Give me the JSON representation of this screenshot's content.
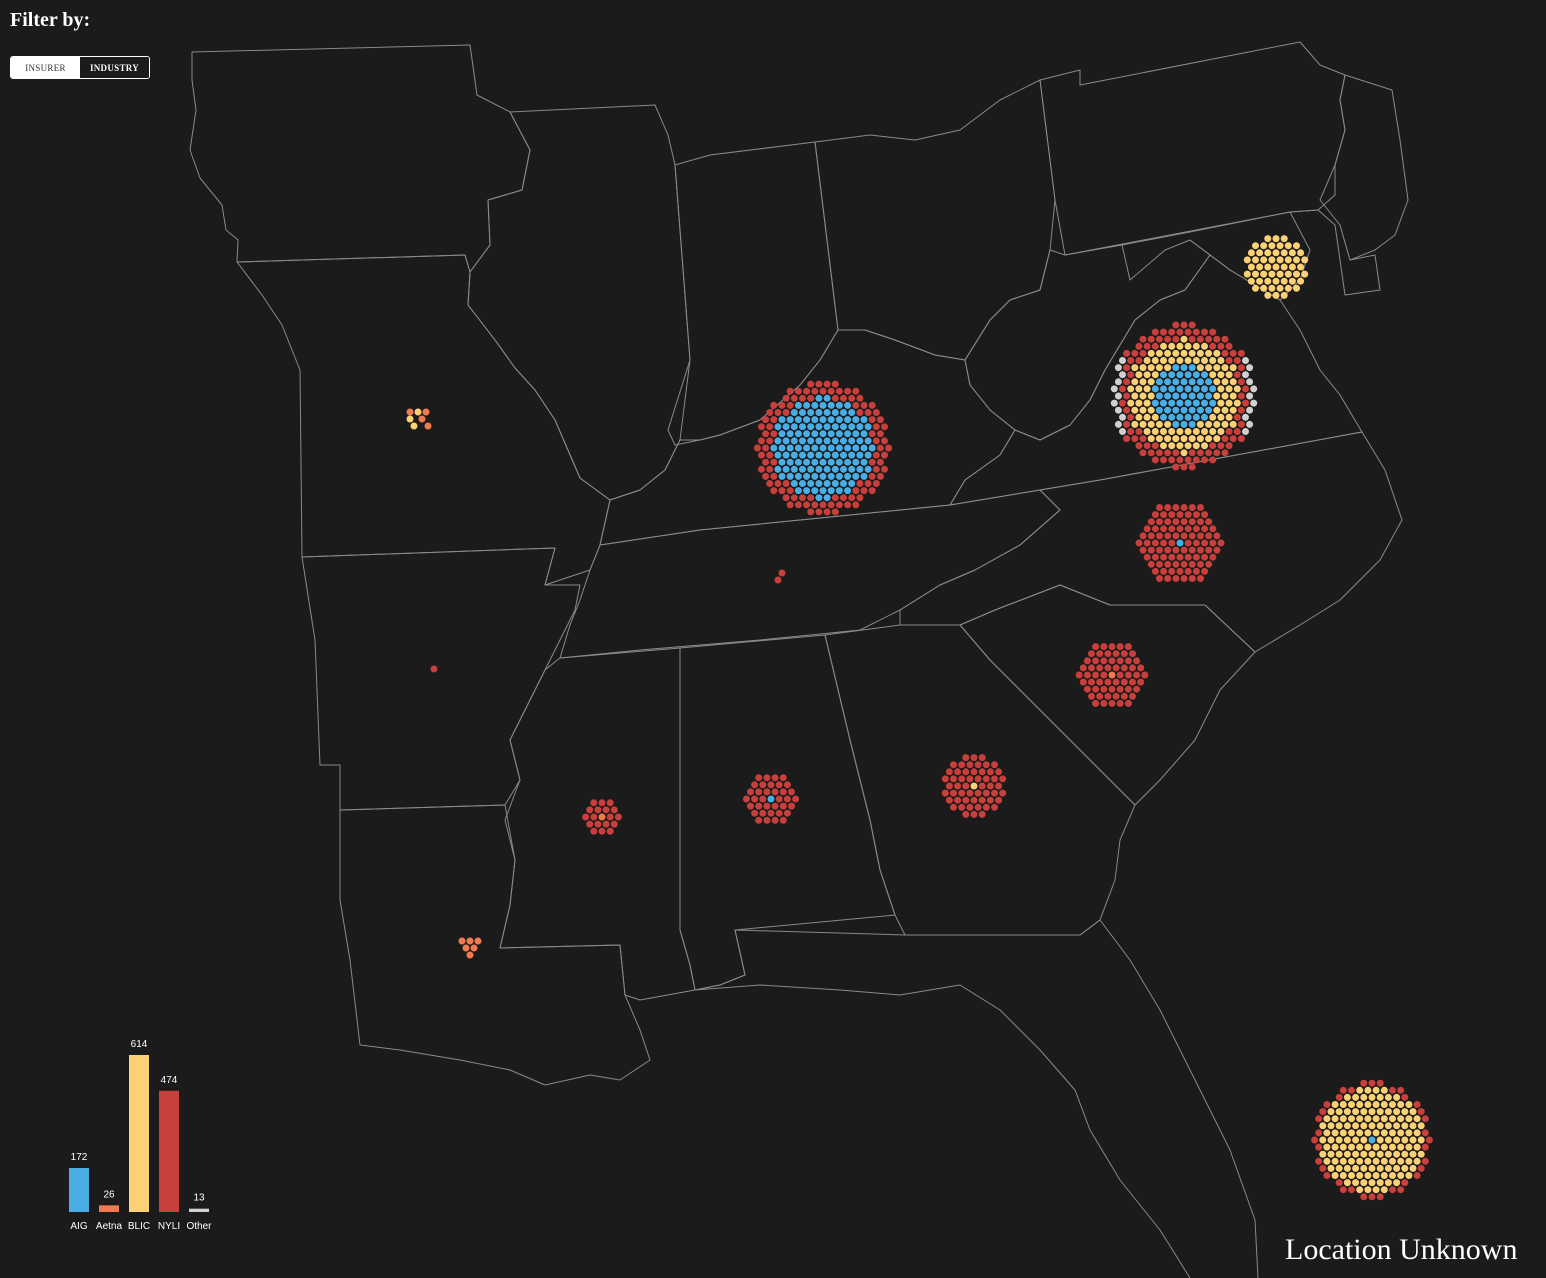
{
  "filter": {
    "title": "Filter by:",
    "options": [
      "INSURER",
      "INDUSTRY"
    ],
    "selected": "INDUSTRY"
  },
  "location_unknown": {
    "label": "Location Unknown"
  },
  "colors": {
    "background": "#1b1b1b",
    "state_border": "#8a8a8a",
    "AIG": "#4aaee6",
    "Aetna": "#f37a4f",
    "BLIC": "#fcd175",
    "NYLI": "#c93f3b",
    "Other": "#d0d0d0"
  },
  "chart_data": {
    "type": "bar",
    "categories": [
      "AIG",
      "Aetna",
      "BLIC",
      "NYLI",
      "Other"
    ],
    "values": [
      172,
      26,
      614,
      474,
      13
    ],
    "value_labels": [
      "172",
      "26",
      "614",
      "474",
      "13"
    ],
    "colors": [
      "#4aaee6",
      "#f37a4f",
      "#fcd175",
      "#c93f3b",
      "#d0d0d0"
    ],
    "title": "",
    "xlabel": "",
    "ylabel": ""
  }
}
